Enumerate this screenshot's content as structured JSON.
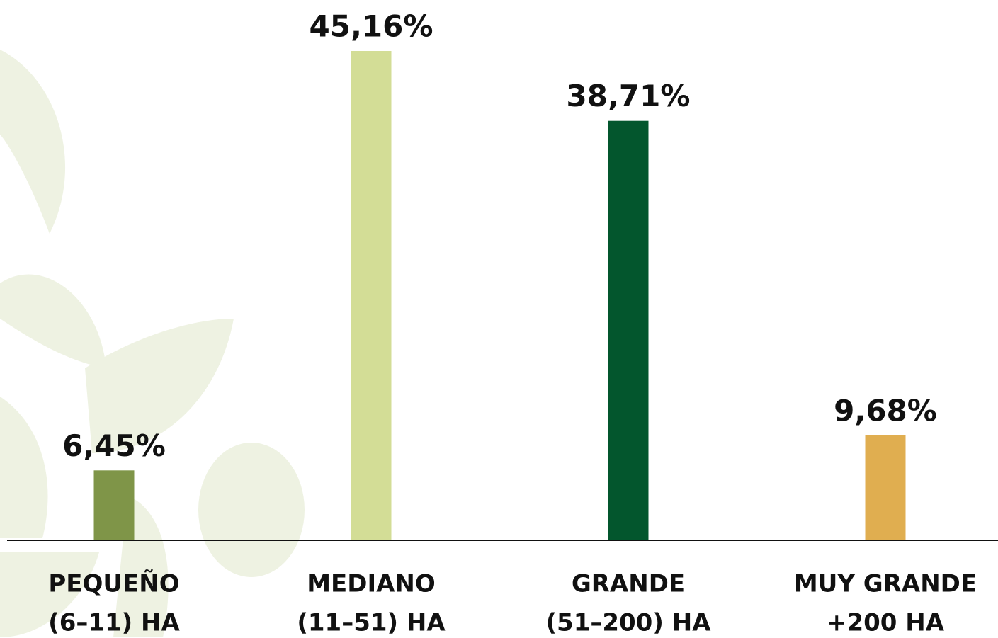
{
  "chart_data": {
    "type": "bar",
    "categories": [
      [
        "PEQUEÑO",
        "(6–11) HA"
      ],
      [
        "MEDIANO",
        "(11–51) HA"
      ],
      [
        "GRANDE",
        "(51–200) HA"
      ],
      [
        "MUY GRANDE",
        "+200 HA"
      ]
    ],
    "values": [
      6.45,
      45.16,
      38.71,
      9.68
    ],
    "value_labels": [
      "6,45%",
      "45,16%",
      "38,71%",
      "9,68%"
    ],
    "colors": [
      "#7f9548",
      "#d3dd96",
      "#03562d",
      "#e0ae50"
    ]
  }
}
